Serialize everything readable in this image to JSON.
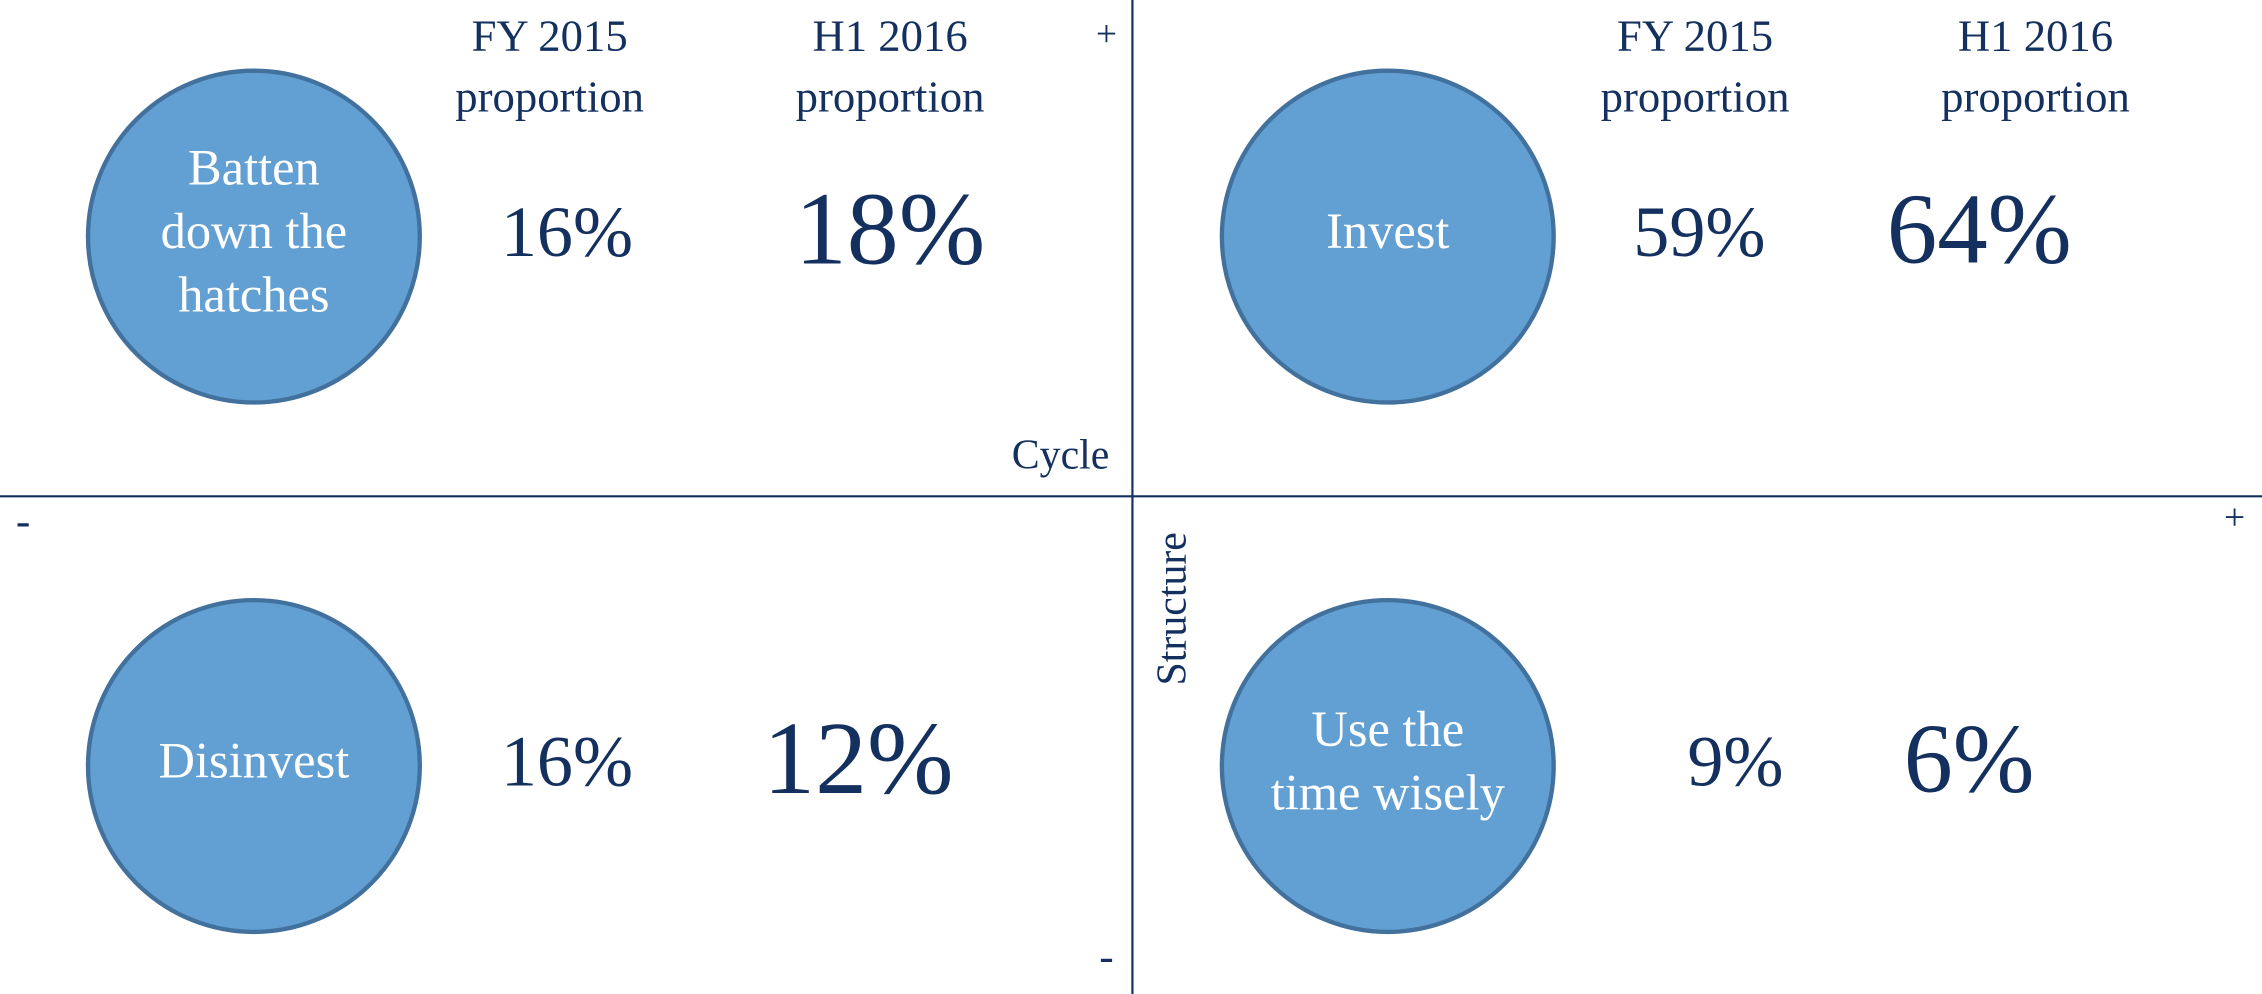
{
  "headers": {
    "fy": [
      "FY 2015",
      "proportion"
    ],
    "h1": [
      "H1 2016",
      "proportion"
    ]
  },
  "axes": {
    "cycle": "Cycle",
    "structure": "Structure",
    "top": "+",
    "bottom": "-",
    "left": "-",
    "right": "+"
  },
  "quadrants": [
    {
      "label": [
        "Batten",
        "down the",
        "hatches"
      ],
      "fy": "16%",
      "h1": "18%"
    },
    {
      "label": [
        "Invest"
      ],
      "fy": "59%",
      "h1": "64%"
    },
    {
      "label": [
        "Disinvest"
      ],
      "fy": "16%",
      "h1": "12%"
    },
    {
      "label": [
        "Use the",
        "time wisely"
      ],
      "fy": "9%",
      "h1": "6%"
    }
  ]
}
